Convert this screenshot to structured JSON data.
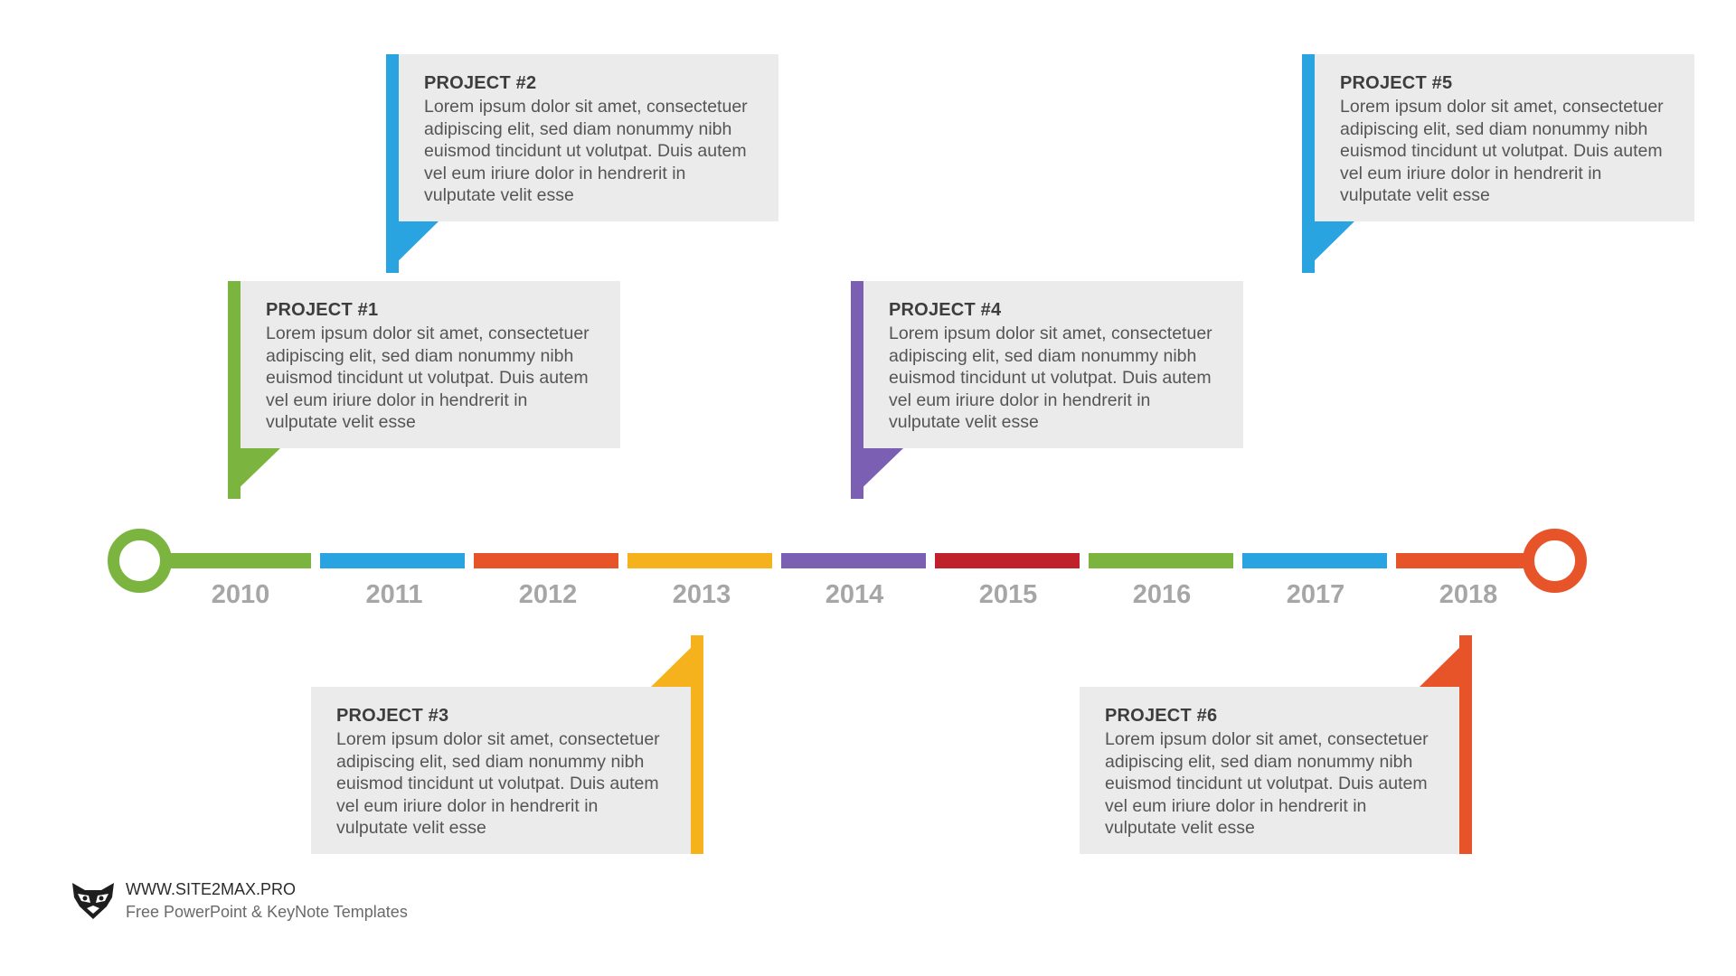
{
  "colors": {
    "green": "#7bb53f",
    "blue": "#2aa4e0",
    "orange": "#e8542a",
    "yellow": "#f5b21d",
    "purple": "#7a5fb3",
    "red": "#c0222b",
    "card": "#ebebeb",
    "year": "#a6a6a6"
  },
  "projects": [
    {
      "title": "PROJECT #1",
      "text": "Lorem ipsum dolor sit amet, consectetuer adipiscing elit, sed diam nonummy nibh euismod tincidunt ut volutpat. Duis autem vel eum iriure dolor in hendrerit in vulputate velit esse"
    },
    {
      "title": "PROJECT #2",
      "text": "Lorem ipsum dolor sit amet, consectetuer adipiscing elit, sed diam nonummy nibh euismod tincidunt ut volutpat. Duis autem vel eum iriure dolor in hendrerit in vulputate velit esse"
    },
    {
      "title": "PROJECT #3",
      "text": "Lorem ipsum dolor sit amet, consectetuer adipiscing elit, sed diam nonummy nibh euismod tincidunt ut volutpat. Duis autem vel eum iriure dolor in hendrerit in vulputate velit esse"
    },
    {
      "title": "PROJECT #4",
      "text": "Lorem ipsum dolor sit amet, consectetuer adipiscing elit, sed diam nonummy nibh euismod tincidunt ut volutpat. Duis autem vel eum iriure dolor in hendrerit in vulputate velit esse"
    },
    {
      "title": "PROJECT #5",
      "text": "Lorem ipsum dolor sit amet, consectetuer adipiscing elit, sed diam nonummy nibh euismod tincidunt ut volutpat. Duis autem vel eum iriure dolor in hendrerit in vulputate velit esse"
    },
    {
      "title": "PROJECT #6",
      "text": "Lorem ipsum dolor sit amet, consectetuer adipiscing elit, sed diam nonummy nibh euismod tincidunt ut volutpat. Duis autem vel eum iriure dolor in hendrerit in vulputate velit esse"
    }
  ],
  "timeline": {
    "years": [
      "2010",
      "2011",
      "2012",
      "2013",
      "2014",
      "2015",
      "2016",
      "2017",
      "2018"
    ]
  },
  "footer": {
    "url": "WWW.SITE2MAX.PRO",
    "tagline": "Free PowerPoint & KeyNote Templates",
    "logo_icon": "raccoon-logo-icon"
  }
}
